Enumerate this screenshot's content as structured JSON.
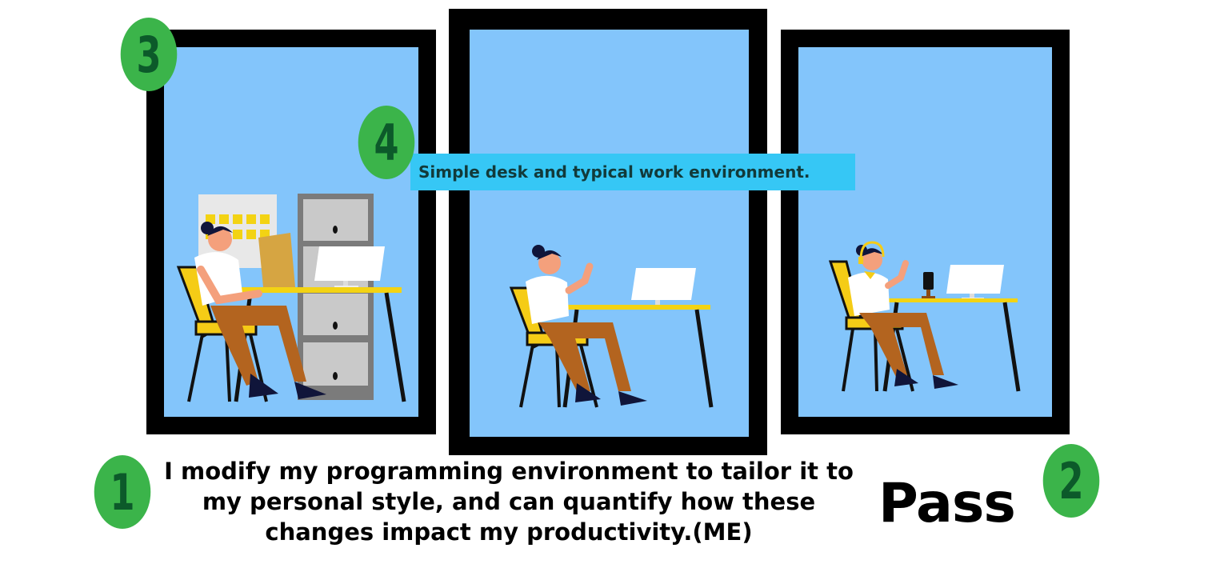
{
  "caption": "Simple desk and typical work environment.",
  "statement": "I modify my programming environment to tailor it to my personal style, and can quantify how these changes impact my productivity.(ME)",
  "result": "Pass",
  "badges": {
    "b1": "1",
    "b2": "2",
    "b3": "3",
    "b4": "4"
  },
  "colors": {
    "badge": "#3bb44a",
    "badge_text": "#0c5a2a",
    "sky": "#83c5fb",
    "caption_bg": "#36c7f5",
    "desk": "#f3d313",
    "pants": "#b3641f",
    "chair": "#f5cc16"
  },
  "icons": [
    "woman-at-desk-illustration",
    "filing-cabinet-icon",
    "calendar-board-icon",
    "monitor-icon",
    "headset-icon",
    "phone-stand-icon"
  ]
}
